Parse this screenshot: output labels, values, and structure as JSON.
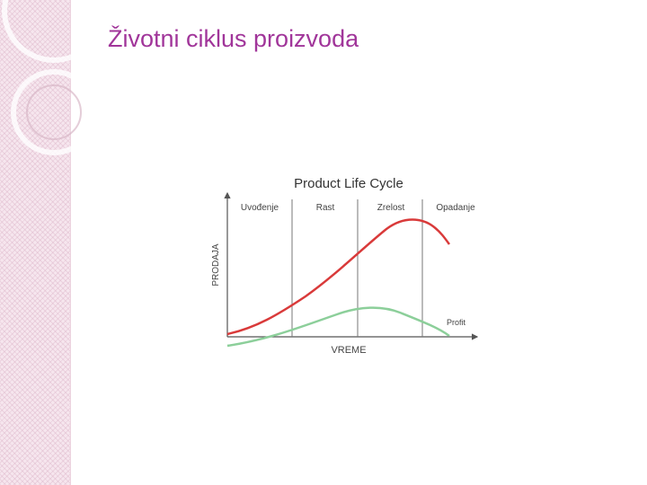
{
  "slide": {
    "title": "Životni ciklus proizvoda"
  },
  "diagram": {
    "title": "Product Life Cycle",
    "stages": [
      "Uvođenje",
      "Rast",
      "Zrelost",
      "Opadanje"
    ],
    "y_axis_label": "PRODAJA",
    "x_axis_label": "VREME",
    "profit_label": "Profit"
  }
}
